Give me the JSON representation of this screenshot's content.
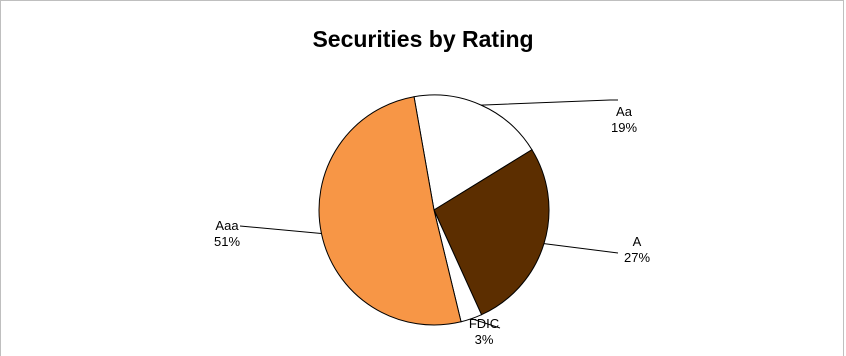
{
  "chart_data": {
    "type": "pie",
    "title": "Securities by Rating",
    "slices": [
      {
        "label": "Aa",
        "value": 19,
        "value_label": "19%",
        "color": "#ffffff"
      },
      {
        "label": "A",
        "value": 27,
        "value_label": "27%",
        "color": "#5c2e00"
      },
      {
        "label": "FDIC",
        "value": 3,
        "value_label": "3%",
        "color": "#ffffff"
      },
      {
        "label": "Aaa",
        "value": 51,
        "value_label": "51%",
        "color": "#f79646"
      }
    ],
    "legend": "none",
    "label_style": "outside-with-leader-lines"
  }
}
